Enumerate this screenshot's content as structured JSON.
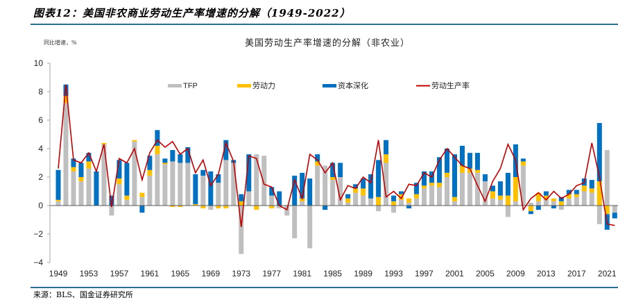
{
  "figure": {
    "title": "图表12：美国非农商业劳动生产率增速的分解（1949-2022）",
    "source": "来源：BLS、国金证券研究所"
  },
  "colors": {
    "tfp": "#bfbfbf",
    "labor": "#ffc000",
    "capital": "#0070c0",
    "productivity": "#c00000",
    "rule": "#2c6e8f"
  },
  "chart_data": {
    "type": "bar",
    "stacked": true,
    "title": "美国劳动生产率增速的分解（非农业）",
    "ylabel": "同比增速，%",
    "xlabel": "",
    "ylim": [
      -4,
      10
    ],
    "yticks": [
      10,
      8,
      6,
      4,
      2,
      0,
      -2,
      -4
    ],
    "yticks_labels": [
      "10",
      "8",
      "6",
      "4",
      "2",
      "0",
      "−2",
      "−4"
    ],
    "xtick_labels": [
      "1949",
      "1953",
      "1957",
      "1961",
      "1965",
      "1969",
      "1973",
      "1977",
      "1981",
      "1985",
      "1989",
      "1993",
      "1997",
      "2001",
      "2005",
      "2009",
      "2013",
      "2017",
      "2021"
    ],
    "legend": [
      {
        "key": "tfp",
        "label": "TFP",
        "kind": "bar"
      },
      {
        "key": "labor",
        "label": "劳动力",
        "kind": "bar"
      },
      {
        "key": "capital",
        "label": "资本深化",
        "kind": "bar"
      },
      {
        "key": "productivity",
        "label": "劳动生产率",
        "kind": "line"
      }
    ],
    "legend_position": "top",
    "grid": false,
    "categories": [
      1949,
      1950,
      1951,
      1952,
      1953,
      1954,
      1955,
      1956,
      1957,
      1958,
      1959,
      1960,
      1961,
      1962,
      1963,
      1964,
      1965,
      1966,
      1967,
      1968,
      1969,
      1970,
      1971,
      1972,
      1973,
      1974,
      1975,
      1976,
      1977,
      1978,
      1979,
      1980,
      1981,
      1982,
      1983,
      1984,
      1985,
      1986,
      1987,
      1988,
      1989,
      1990,
      1991,
      1992,
      1993,
      1994,
      1995,
      1996,
      1997,
      1998,
      1999,
      2000,
      2001,
      2002,
      2003,
      2004,
      2005,
      2006,
      2007,
      2008,
      2009,
      2010,
      2011,
      2012,
      2013,
      2014,
      2015,
      2016,
      2017,
      2018,
      2019,
      2020,
      2021,
      2022
    ],
    "series": [
      {
        "name": "TFP",
        "key": "tfp",
        "values": [
          0.3,
          7.2,
          2.4,
          1.7,
          2.6,
          0.0,
          4.3,
          -0.7,
          1.5,
          0.4,
          4.5,
          0.6,
          2.1,
          3.6,
          2.9,
          3.1,
          3.0,
          3.0,
          0.0,
          2.1,
          -0.3,
          1.6,
          3.2,
          3.0,
          -3.4,
          1.0,
          3.6,
          3.5,
          0.7,
          -0.2,
          -0.7,
          -2.3,
          0.3,
          -3.0,
          2.8,
          2.8,
          1.8,
          2.0,
          0.2,
          0.9,
          0.7,
          0.5,
          -0.4,
          3.0,
          -0.5,
          0.4,
          0.2,
          0.5,
          1.2,
          1.4,
          1.3,
          2.0,
          0.3,
          2.3,
          2.3,
          2.3,
          1.7,
          0.5,
          0.4,
          -0.8,
          0.3,
          2.8,
          0.2,
          0.3,
          0.4,
          0.3,
          -0.3,
          0.5,
          0.6,
          1.0,
          0.9,
          -1.3,
          3.9,
          -0.5
        ],
        "pos_labor": [
          0.1,
          0.5,
          0.3,
          0.3,
          0.5,
          0.0,
          0.1,
          0.0,
          0.4,
          0.3,
          0.1,
          0.3,
          0.4,
          0.6,
          0.1,
          0.0,
          0.0,
          0.0,
          0.1,
          0.0,
          0.0,
          0.0,
          0.0,
          0.0,
          0.3,
          0.0,
          0.0,
          0.0,
          0.0,
          0.0,
          0.0,
          0.0,
          0.2,
          0.0,
          0.3,
          0.0,
          0.2,
          0.0,
          0.3,
          0.3,
          0.5,
          0.0,
          0.6,
          0.6,
          0.3,
          0.4,
          0.3,
          0.3,
          0.2,
          0.2,
          0.3,
          0.3,
          0.3,
          0.5,
          0.3,
          0.2,
          0.0,
          0.5,
          0.3,
          0.7,
          1.7,
          0.3,
          0.0,
          0.6,
          0.3,
          0.2,
          0.3,
          0.3,
          0.2,
          0.4,
          0.3,
          1.7,
          0.0,
          0.0
        ],
        "neg_labor": [
          0,
          0,
          0,
          0,
          0,
          0,
          0,
          0,
          0,
          0,
          0,
          0,
          0,
          0,
          0,
          -0.1,
          -0.1,
          0,
          0,
          -0.2,
          0,
          -0.2,
          -0.2,
          0,
          0,
          0,
          -0.3,
          0,
          -0.2,
          0,
          0,
          0,
          0,
          0,
          0,
          0,
          0,
          0,
          0,
          0,
          0,
          0,
          0,
          0,
          0,
          0,
          0,
          0,
          0,
          0,
          0,
          0,
          0,
          0,
          0,
          0,
          0,
          0,
          0,
          0,
          0,
          0,
          -0.4,
          0,
          0,
          0,
          0,
          0,
          0,
          0,
          0,
          0,
          -0.6,
          0
        ]
      },
      {
        "name": "劳动力",
        "key": "labor",
        "values": [
          0.1,
          0.5,
          0.3,
          0.3,
          0.5,
          0.0,
          0.1,
          0.0,
          0.4,
          0.3,
          0.1,
          0.3,
          0.4,
          0.6,
          0.1,
          -0.1,
          -0.1,
          0.0,
          0.1,
          -0.2,
          0.0,
          -0.2,
          -0.2,
          0.0,
          0.3,
          0.0,
          -0.3,
          0.0,
          -0.2,
          0.0,
          0.0,
          0.0,
          0.2,
          0.0,
          0.3,
          0.0,
          0.2,
          0.0,
          0.3,
          0.3,
          0.5,
          0.0,
          0.6,
          0.6,
          0.3,
          0.4,
          0.3,
          0.3,
          0.2,
          0.2,
          0.3,
          0.3,
          0.3,
          0.5,
          0.3,
          0.2,
          0.0,
          0.5,
          0.3,
          0.7,
          1.7,
          0.3,
          -0.4,
          0.6,
          0.3,
          0.2,
          0.3,
          0.3,
          0.2,
          0.4,
          0.3,
          1.7,
          -0.6,
          0.0
        ]
      },
      {
        "name": "资本深化",
        "key": "capital",
        "values": [
          2.1,
          0.8,
          0.6,
          1.0,
          0.6,
          2.4,
          0.0,
          0.7,
          1.3,
          2.3,
          0.0,
          -0.5,
          1.0,
          1.1,
          0.3,
          0.8,
          0.6,
          1.1,
          2.1,
          0.4,
          2.4,
          0.6,
          1.4,
          0.2,
          0.5,
          2.6,
          0.0,
          0.0,
          0.6,
          1.0,
          0.0,
          2.1,
          1.8,
          1.9,
          0.5,
          -0.3,
          1.0,
          1.0,
          0.3,
          0.3,
          0.7,
          1.7,
          2.6,
          1.0,
          0.4,
          0.2,
          -0.2,
          0.8,
          1.0,
          0.8,
          1.8,
          1.7,
          3.0,
          1.4,
          1.1,
          1.2,
          0.5,
          0.4,
          1.0,
          1.6,
          2.3,
          0.2,
          -0.2,
          -0.3,
          0.3,
          -0.2,
          0.3,
          0.3,
          0.3,
          0.5,
          0.6,
          4.1,
          -1.1,
          -0.4
        ]
      },
      {
        "name": "劳动生产率",
        "key": "productivity",
        "values": [
          2.6,
          8.5,
          3.2,
          3.0,
          3.7,
          2.4,
          4.3,
          -0.1,
          3.3,
          3.0,
          4.0,
          1.8,
          3.7,
          4.6,
          4.1,
          4.5,
          3.6,
          4.0,
          2.3,
          3.2,
          1.4,
          2.2,
          4.4,
          3.1,
          -1.5,
          3.5,
          3.3,
          1.5,
          1.3,
          0.0,
          -0.3,
          1.8,
          0.5,
          3.6,
          3.2,
          2.3,
          3.0,
          0.4,
          1.4,
          1.2,
          2.0,
          1.6,
          4.6,
          0.6,
          1.0,
          0.5,
          1.5,
          1.4,
          2.3,
          2.0,
          3.2,
          4.0,
          3.4,
          2.8,
          2.6,
          1.4,
          0.3,
          1.7,
          2.6,
          4.3,
          3.2,
          -0.3,
          0.5,
          0.9,
          0.4,
          1.0,
          0.5,
          0.8,
          1.4,
          1.6,
          4.4,
          2.0,
          -1.3,
          -1.4
        ]
      }
    ]
  }
}
